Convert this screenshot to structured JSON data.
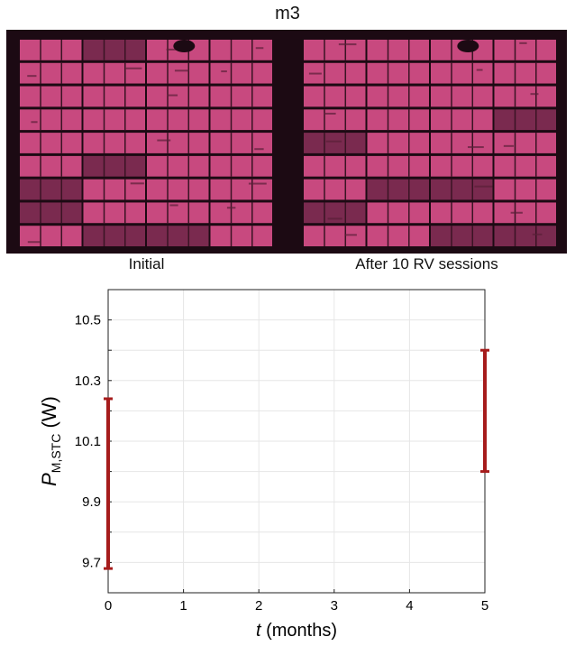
{
  "figure": {
    "title": "m3",
    "images": [
      {
        "caption": "Initial",
        "image_semantic": "electroluminescence-image-of-pv-module"
      },
      {
        "caption": "After 10 RV sessions",
        "image_semantic": "electroluminescence-image-of-pv-module"
      }
    ]
  },
  "colors": {
    "cell": "#c8497f",
    "cell_dark": "#7a2a4f",
    "background_dark": "#1c0a13",
    "errorbar": "#a61c1c",
    "grid": "#e6e6e6"
  },
  "chart_data": {
    "type": "errorbar",
    "title": "",
    "xlabel": {
      "symbol": "t",
      "unit": " (months)"
    },
    "ylabel": {
      "symbol": "P",
      "subscript": "M,STC",
      "unit": " (W)"
    },
    "xlim": [
      0,
      5
    ],
    "ylim": [
      9.6,
      10.6
    ],
    "xticks": [
      "0",
      "1",
      "2",
      "3",
      "4",
      "5"
    ],
    "yticks": [
      "9.7",
      "9.9",
      "10.1",
      "10.3",
      "10.5"
    ],
    "grid": true,
    "series": [
      {
        "points": [
          {
            "x": 0,
            "low": 9.68,
            "high": 10.24
          },
          {
            "x": 5,
            "low": 10.0,
            "high": 10.4
          }
        ]
      }
    ]
  }
}
